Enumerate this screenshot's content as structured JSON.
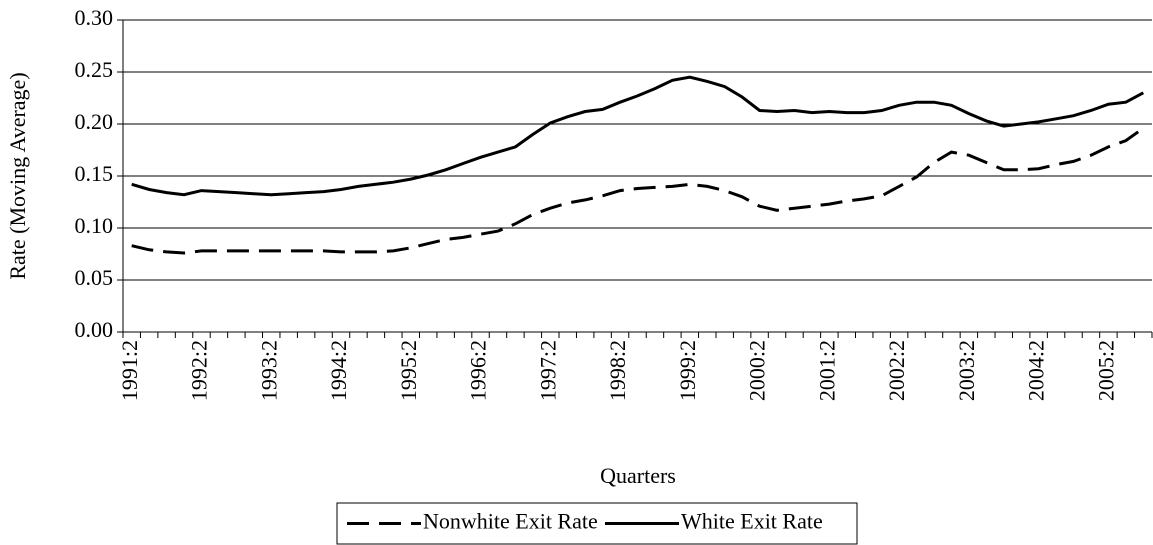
{
  "chart_data": {
    "type": "line",
    "x_label": "Quarters",
    "y_label": "Rate (Moving Average)",
    "categories": [
      "1991:2",
      null,
      null,
      null,
      "1992:2",
      null,
      null,
      null,
      "1993:2",
      null,
      null,
      null,
      "1994:2",
      null,
      null,
      null,
      "1995:2",
      null,
      null,
      null,
      "1996:2",
      null,
      null,
      null,
      "1997:2",
      null,
      null,
      null,
      "1998:2",
      null,
      null,
      null,
      "1999:2",
      null,
      null,
      null,
      "2000:2",
      null,
      null,
      null,
      "2001:2",
      null,
      null,
      null,
      "2002:2",
      null,
      null,
      null,
      "2003:2",
      null,
      null,
      null,
      "2004:2",
      null,
      null,
      null,
      "2005:2",
      null,
      null
    ],
    "series": [
      {
        "name": "Nonwhite Exit Rate",
        "color": "#000000",
        "dash": "dashed",
        "values": [
          0.083,
          0.079,
          0.077,
          0.076,
          0.078,
          0.078,
          0.078,
          0.078,
          0.078,
          0.078,
          0.078,
          0.078,
          0.077,
          0.077,
          0.077,
          0.078,
          0.081,
          0.085,
          0.089,
          0.091,
          0.094,
          0.097,
          0.104,
          0.113,
          0.119,
          0.124,
          0.127,
          0.131,
          0.136,
          0.138,
          0.139,
          0.14,
          0.142,
          0.14,
          0.136,
          0.13,
          0.121,
          0.117,
          0.119,
          0.121,
          0.123,
          0.126,
          0.128,
          0.131,
          0.14,
          0.149,
          0.163,
          0.173,
          0.17,
          0.163,
          0.156,
          0.156,
          0.157,
          0.161,
          0.164,
          0.17,
          0.178,
          0.184,
          0.196
        ]
      },
      {
        "name": "White Exit Rate",
        "color": "#000000",
        "dash": "solid",
        "values": [
          0.142,
          0.137,
          0.134,
          0.132,
          0.136,
          0.135,
          0.134,
          0.133,
          0.132,
          0.133,
          0.134,
          0.135,
          0.137,
          0.14,
          0.142,
          0.144,
          0.147,
          0.151,
          0.156,
          0.162,
          0.168,
          0.173,
          0.178,
          0.19,
          0.201,
          0.207,
          0.212,
          0.214,
          0.221,
          0.227,
          0.234,
          0.242,
          0.245,
          0.241,
          0.236,
          0.226,
          0.213,
          0.212,
          0.213,
          0.211,
          0.212,
          0.211,
          0.211,
          0.213,
          0.218,
          0.221,
          0.221,
          0.218,
          0.21,
          0.203,
          0.198,
          0.2,
          0.202,
          0.205,
          0.208,
          0.213,
          0.219,
          0.221,
          0.23
        ]
      }
    ],
    "ylim": [
      0,
      0.3
    ],
    "yticks": [
      {
        "value": 0,
        "label": "0.00"
      },
      0.05,
      {
        "value": 0.1,
        "label": "0.10"
      },
      0.15,
      {
        "value": 0.2,
        "label": "0.20"
      },
      0.25,
      {
        "value": 0.3,
        "label": "0.30"
      }
    ],
    "grid": true,
    "legend": "bottom"
  }
}
